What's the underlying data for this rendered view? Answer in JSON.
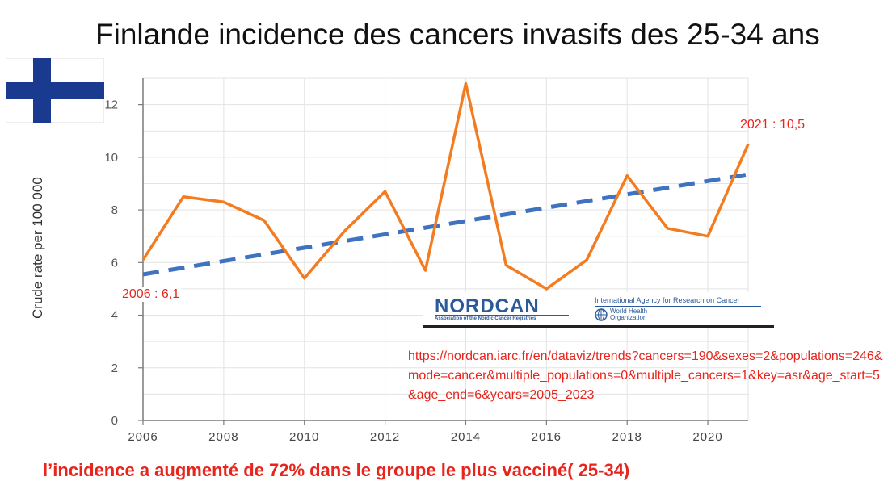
{
  "page": {
    "title": "Finlande incidence des cancers invasifs des 25-34 ans",
    "conclusion": "l’incidence a augmenté de 72% dans le groupe le plus vacciné( 25-34)",
    "source_url": "https://nordcan.iarc.fr/en/dataviz/trends?cancers=190&sexes=2&populations=246&mode=cancer&multiple_populations=0&multiple_cancers=1&key=asr&age_start=5&age_end=6&years=2005_2023",
    "logo": {
      "nordcan": "NORDCAN",
      "nordcan_sub": "Association of the Nordic Cancer Registries",
      "iarc": "International Agency for Research on Cancer",
      "who_line1": "World Health",
      "who_line2": "Organization"
    },
    "flag": {
      "field": "#ffffff",
      "cross": "#1a3a8f"
    }
  },
  "chart_data": {
    "type": "line",
    "ylabel": "Crude rate per 100 000",
    "xlabel": "",
    "ylim": [
      0,
      13
    ],
    "xlim": [
      2006,
      2021
    ],
    "x_ticks": [
      2006,
      2008,
      2010,
      2012,
      2014,
      2016,
      2018,
      2020
    ],
    "y_ticks": [
      0,
      2,
      4,
      6,
      8,
      10,
      12
    ],
    "grid": true,
    "series": [
      {
        "x": [
          2006,
          2007,
          2008,
          2009,
          2010,
          2011,
          2012,
          2013,
          2014,
          2015,
          2016,
          2017,
          2018,
          2019,
          2020,
          2021
        ],
        "values": [
          6.1,
          8.5,
          8.3,
          7.6,
          5.4,
          7.2,
          8.7,
          5.7,
          12.8,
          5.9,
          5.0,
          6.1,
          9.3,
          7.3,
          7.0,
          10.5
        ],
        "color": "#f47c20",
        "style": "solid"
      },
      {
        "x": [
          2006,
          2021
        ],
        "values": [
          5.55,
          9.35
        ],
        "color": "#3f72c0",
        "style": "dashed"
      }
    ],
    "annotations": [
      {
        "text": "2021 : 10,5",
        "x": 2021,
        "y": 10.5
      },
      {
        "text": "2006 : 6,1",
        "x": 2006,
        "y": 6.1
      }
    ],
    "annotation_color": "#e8241c"
  }
}
